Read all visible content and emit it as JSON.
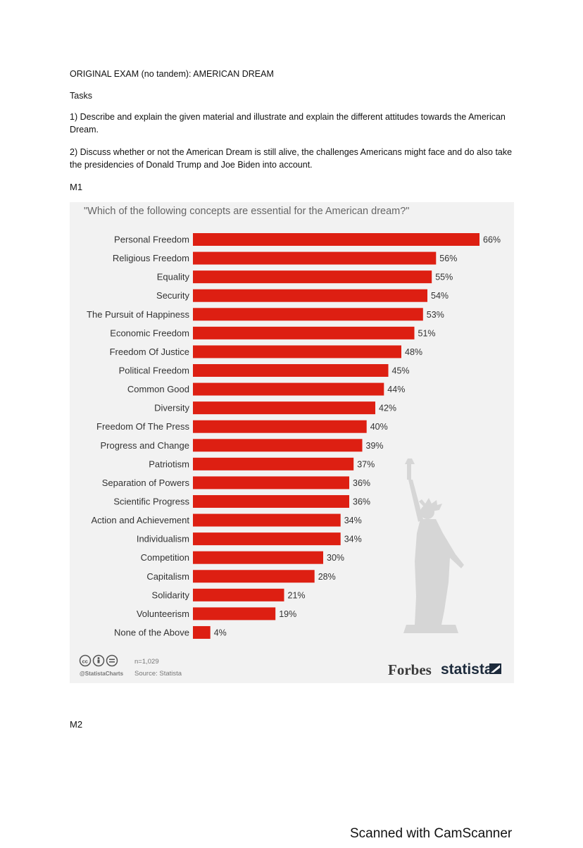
{
  "document": {
    "title": "ORIGINAL EXAM (no tandem): AMERICAN DREAM",
    "tasks_heading": "Tasks",
    "task1": "1) Describe and explain the given material and illustrate and explain the different attitudes towards the American Dream.",
    "task2": "2) Discuss whether or not the American Dream is still alive, the challenges Americans might face and do also take the presidencies of Donald Trump and Joe Biden into account.",
    "m1_label": "M1",
    "m2_label": "M2",
    "scanner_watermark": "Scanned with CamScanner"
  },
  "chart_data": {
    "type": "bar",
    "orientation": "horizontal",
    "title": "\"Which of the following concepts are essential for the American dream?\"",
    "categories": [
      "Personal Freedom",
      "Religious Freedom",
      "Equality",
      "Security",
      "The Pursuit of Happiness",
      "Economic Freedom",
      "Freedom Of Justice",
      "Political Freedom",
      "Common Good",
      "Diversity",
      "Freedom Of The Press",
      "Progress and Change",
      "Patriotism",
      "Separation of Powers",
      "Scientific Progress",
      "Action and Achievement",
      "Individualism",
      "Competition",
      "Capitalism",
      "Solidarity",
      "Volunteerism",
      "None of the Above"
    ],
    "values": [
      66,
      56,
      55,
      54,
      53,
      51,
      48,
      45,
      44,
      42,
      40,
      39,
      37,
      36,
      36,
      34,
      34,
      30,
      28,
      21,
      19,
      4
    ],
    "value_suffix": "%",
    "bar_color": "#dd1f12",
    "xlim": [
      0,
      66
    ],
    "grid": false,
    "footer": {
      "sample": "n=1,029",
      "handle": "@StatistaCharts",
      "source": "Source: Statista",
      "brand1": "Forbes",
      "brand2": "statista"
    },
    "icons": [
      "cc-icon",
      "attribution-icon",
      "no-derivatives-icon",
      "statue-of-liberty-icon",
      "statista-logo-icon"
    ]
  }
}
